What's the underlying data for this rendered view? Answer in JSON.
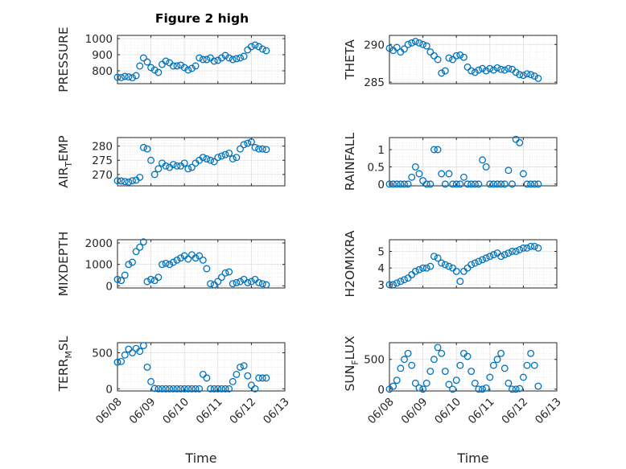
{
  "figure": {
    "title": "Figure 2 high",
    "xlabel": "Time"
  },
  "chart_data": [
    {
      "type": "scatter",
      "ylabel": "PRESSURE",
      "xlim": [
        0,
        4.5
      ],
      "ylim": [
        720,
        1020
      ],
      "yticks": [
        800,
        900,
        1000
      ],
      "x": [
        0,
        0.1,
        0.2,
        0.3,
        0.4,
        0.5,
        0.6,
        0.7,
        0.8,
        0.9,
        1.0,
        1.1,
        1.2,
        1.3,
        1.4,
        1.5,
        1.6,
        1.7,
        1.8,
        1.9,
        2.0,
        2.1,
        2.2,
        2.3,
        2.4,
        2.5,
        2.6,
        2.7,
        2.8,
        2.9,
        3.0,
        3.1,
        3.2,
        3.3,
        3.4,
        3.5,
        3.6,
        3.7,
        3.8,
        3.9,
        4.0
      ],
      "y": [
        760,
        758,
        765,
        762,
        757,
        770,
        830,
        880,
        855,
        820,
        805,
        790,
        840,
        860,
        850,
        830,
        830,
        835,
        820,
        805,
        815,
        830,
        880,
        870,
        870,
        880,
        860,
        865,
        880,
        895,
        880,
        870,
        875,
        880,
        890,
        930,
        950,
        960,
        950,
        935,
        925
      ]
    },
    {
      "type": "scatter",
      "ylabel": "THETA",
      "xlim": [
        0,
        4.5
      ],
      "ylim": [
        284.8,
        291.2
      ],
      "yticks": [
        285,
        290
      ],
      "x": [
        0,
        0.1,
        0.2,
        0.3,
        0.4,
        0.5,
        0.6,
        0.7,
        0.8,
        0.9,
        1.0,
        1.1,
        1.2,
        1.3,
        1.4,
        1.5,
        1.6,
        1.7,
        1.8,
        1.9,
        2.0,
        2.1,
        2.2,
        2.3,
        2.4,
        2.5,
        2.6,
        2.7,
        2.8,
        2.9,
        3.0,
        3.1,
        3.2,
        3.3,
        3.4,
        3.5,
        3.6,
        3.7,
        3.8,
        3.9,
        4.0
      ],
      "y": [
        289.5,
        289.2,
        289.6,
        289.0,
        289.4,
        290.0,
        290.2,
        290.4,
        290.2,
        290.0,
        289.8,
        289.0,
        288.5,
        288.0,
        286.2,
        286.5,
        288.2,
        288.0,
        288.5,
        288.6,
        288.3,
        287.0,
        286.5,
        286.3,
        286.6,
        286.8,
        286.5,
        286.8,
        286.6,
        286.9,
        286.7,
        286.6,
        286.8,
        286.7,
        286.3,
        286.0,
        285.9,
        286.1,
        286.0,
        285.8,
        285.5
      ]
    },
    {
      "type": "scatter",
      "ylabel": "AIR_TEMP",
      "xlim": [
        0,
        4.5
      ],
      "ylim": [
        266,
        283
      ],
      "yticks": [
        270,
        275,
        280
      ],
      "x": [
        0,
        0.1,
        0.2,
        0.3,
        0.4,
        0.5,
        0.6,
        0.7,
        0.8,
        0.9,
        1.0,
        1.1,
        1.2,
        1.3,
        1.4,
        1.5,
        1.6,
        1.7,
        1.8,
        1.9,
        2.0,
        2.1,
        2.2,
        2.3,
        2.4,
        2.5,
        2.6,
        2.7,
        2.8,
        2.9,
        3.0,
        3.1,
        3.2,
        3.3,
        3.4,
        3.5,
        3.6,
        3.7,
        3.8,
        3.9,
        4.0
      ],
      "y": [
        267.8,
        267.7,
        267.5,
        267.3,
        267.8,
        268.0,
        269.0,
        279.5,
        279.0,
        275.0,
        270.0,
        272.0,
        274.0,
        273.0,
        272.5,
        273.5,
        273.0,
        273.0,
        274.0,
        272.0,
        272.5,
        274.0,
        275.0,
        276.0,
        275.5,
        275.0,
        274.5,
        276.0,
        276.5,
        277.0,
        277.5,
        275.5,
        276.0,
        279.0,
        280.5,
        281.0,
        281.5,
        279.5,
        279.0,
        279.0,
        278.8
      ]
    },
    {
      "type": "scatter",
      "ylabel": "RAINFALL",
      "xlim": [
        0,
        4.5
      ],
      "ylim": [
        -0.05,
        1.35
      ],
      "yticks": [
        0,
        0.5,
        1
      ],
      "x": [
        0,
        0.1,
        0.2,
        0.3,
        0.4,
        0.5,
        0.6,
        0.7,
        0.8,
        0.9,
        1.0,
        1.1,
        1.2,
        1.3,
        1.4,
        1.5,
        1.6,
        1.7,
        1.8,
        1.9,
        2.0,
        2.1,
        2.2,
        2.3,
        2.4,
        2.5,
        2.6,
        2.7,
        2.8,
        2.9,
        3.0,
        3.1,
        3.2,
        3.3,
        3.4,
        3.5,
        3.6,
        3.7,
        3.8,
        3.9,
        4.0
      ],
      "y": [
        0,
        0,
        0,
        0,
        0,
        0,
        0.2,
        0.5,
        0.3,
        0.1,
        0,
        0,
        1.0,
        1.0,
        0.3,
        0,
        0.3,
        0,
        0,
        0,
        0.2,
        0,
        0,
        0,
        0,
        0.7,
        0.5,
        0,
        0,
        0,
        0,
        0,
        0.4,
        0,
        1.3,
        1.2,
        0.3,
        0,
        0,
        0,
        0
      ]
    },
    {
      "type": "scatter",
      "ylabel": "MIXDEPTH",
      "xlim": [
        0,
        4.5
      ],
      "ylim": [
        -100,
        2150
      ],
      "yticks": [
        0,
        1000,
        2000
      ],
      "x": [
        0,
        0.1,
        0.2,
        0.3,
        0.4,
        0.5,
        0.6,
        0.7,
        0.8,
        0.9,
        1.0,
        1.1,
        1.2,
        1.3,
        1.4,
        1.5,
        1.6,
        1.7,
        1.8,
        1.9,
        2.0,
        2.1,
        2.2,
        2.3,
        2.4,
        2.5,
        2.6,
        2.7,
        2.8,
        2.9,
        3.0,
        3.1,
        3.2,
        3.3,
        3.4,
        3.5,
        3.6,
        3.7,
        3.8,
        3.9,
        4.0
      ],
      "y": [
        300,
        250,
        500,
        1000,
        1100,
        1600,
        1800,
        2050,
        200,
        300,
        250,
        400,
        1000,
        1050,
        1000,
        1100,
        1200,
        1300,
        1400,
        1250,
        1450,
        1300,
        1400,
        1200,
        800,
        100,
        50,
        200,
        400,
        600,
        650,
        100,
        150,
        200,
        300,
        150,
        200,
        300,
        150,
        100,
        50
      ]
    },
    {
      "type": "scatter",
      "ylabel": "H2OMIXRA",
      "xlim": [
        0,
        4.5
      ],
      "ylim": [
        2.8,
        5.7
      ],
      "yticks": [
        3,
        4,
        5
      ],
      "x": [
        0,
        0.1,
        0.2,
        0.3,
        0.4,
        0.5,
        0.6,
        0.7,
        0.8,
        0.9,
        1.0,
        1.1,
        1.2,
        1.3,
        1.4,
        1.5,
        1.6,
        1.7,
        1.8,
        1.9,
        2.0,
        2.1,
        2.2,
        2.3,
        2.4,
        2.5,
        2.6,
        2.7,
        2.8,
        2.9,
        3.0,
        3.1,
        3.2,
        3.3,
        3.4,
        3.5,
        3.6,
        3.7,
        3.8,
        3.9,
        4.0
      ],
      "y": [
        3.0,
        3.0,
        3.1,
        3.2,
        3.3,
        3.4,
        3.6,
        3.8,
        3.9,
        4.0,
        4.0,
        4.1,
        4.7,
        4.6,
        4.3,
        4.2,
        4.1,
        4.0,
        3.8,
        3.2,
        3.8,
        4.0,
        4.2,
        4.3,
        4.4,
        4.5,
        4.6,
        4.7,
        4.8,
        4.9,
        4.7,
        4.8,
        4.9,
        5.0,
        5.0,
        5.1,
        5.2,
        5.2,
        5.3,
        5.3,
        5.2
      ]
    },
    {
      "type": "scatter",
      "ylabel": "TERR_MSL",
      "xlim": [
        0,
        4.5
      ],
      "ylim": [
        -30,
        640
      ],
      "yticks": [
        0,
        500
      ],
      "x": [
        0,
        0.1,
        0.2,
        0.3,
        0.4,
        0.5,
        0.6,
        0.7,
        0.8,
        0.9,
        1.0,
        1.1,
        1.2,
        1.3,
        1.4,
        1.5,
        1.6,
        1.7,
        1.8,
        1.9,
        2.0,
        2.1,
        2.2,
        2.3,
        2.4,
        2.5,
        2.6,
        2.7,
        2.8,
        2.9,
        3.0,
        3.1,
        3.2,
        3.3,
        3.4,
        3.5,
        3.6,
        3.7,
        3.8,
        3.9,
        4.0
      ],
      "y": [
        370,
        380,
        470,
        550,
        500,
        560,
        520,
        600,
        300,
        100,
        5,
        0,
        0,
        0,
        0,
        0,
        0,
        0,
        0,
        0,
        0,
        0,
        0,
        200,
        150,
        0,
        0,
        0,
        0,
        0,
        0,
        100,
        200,
        300,
        320,
        180,
        50,
        0,
        150,
        150,
        150
      ]
    },
    {
      "type": "scatter",
      "ylabel": "SUN_FLUX",
      "xlim": [
        0,
        4.5
      ],
      "ylim": [
        -30,
        780
      ],
      "yticks": [
        0,
        500
      ],
      "x": [
        0,
        0.1,
        0.2,
        0.3,
        0.4,
        0.5,
        0.6,
        0.7,
        0.8,
        0.9,
        1.0,
        1.1,
        1.2,
        1.3,
        1.4,
        1.5,
        1.6,
        1.7,
        1.8,
        1.9,
        2.0,
        2.1,
        2.2,
        2.3,
        2.4,
        2.5,
        2.6,
        2.7,
        2.8,
        2.9,
        3.0,
        3.1,
        3.2,
        3.3,
        3.4,
        3.5,
        3.6,
        3.7,
        3.8,
        3.9,
        4.0
      ],
      "y": [
        0,
        50,
        150,
        350,
        500,
        600,
        400,
        100,
        20,
        0,
        100,
        300,
        500,
        700,
        600,
        300,
        80,
        0,
        150,
        400,
        600,
        550,
        300,
        100,
        0,
        0,
        20,
        200,
        400,
        500,
        600,
        350,
        100,
        0,
        0,
        10,
        200,
        400,
        600,
        400,
        50
      ]
    }
  ],
  "x_ticks": [
    "06/08",
    "06/09",
    "06/10",
    "06/11",
    "06/12",
    "06/13"
  ],
  "colors": {
    "marker": "#0072BD",
    "axis": "#262626",
    "grid": "#dfdfdf"
  }
}
